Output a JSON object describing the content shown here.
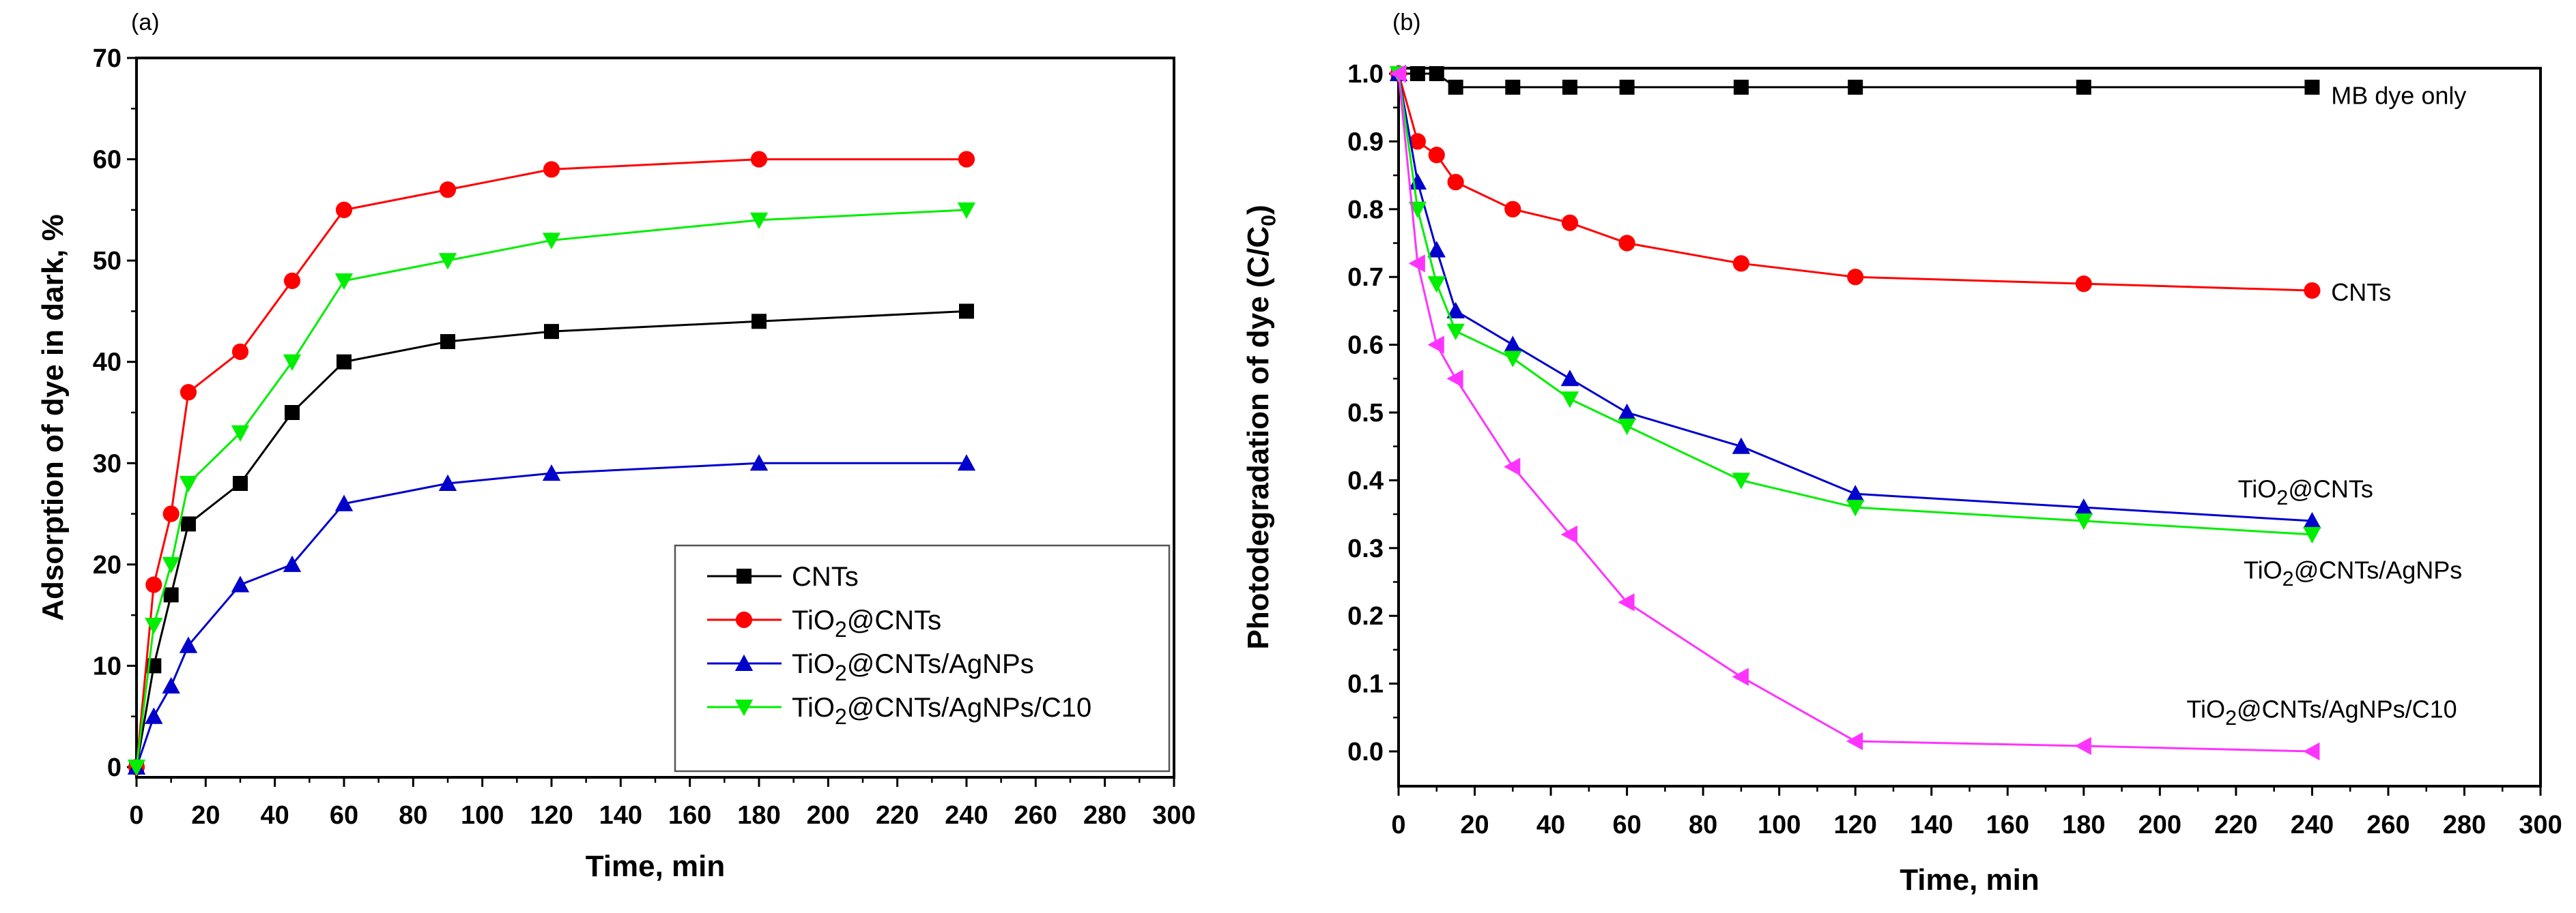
{
  "chart_data": [
    {
      "panel_label": "(a)",
      "type": "line",
      "title": "",
      "xlabel": "Time, min",
      "ylabel": "Adsorption of dye in dark, %",
      "xlim": [
        0,
        300
      ],
      "ylim": [
        0,
        70
      ],
      "xticks": [
        "0",
        "20",
        "40",
        "60",
        "80",
        "100",
        "120",
        "140",
        "160",
        "180",
        "200",
        "220",
        "240",
        "260",
        "280",
        "300"
      ],
      "yticks": [
        "0",
        "10",
        "20",
        "30",
        "40",
        "50",
        "60",
        "70"
      ],
      "legend_position": "bottom-right",
      "x": [
        0,
        5,
        10,
        15,
        30,
        45,
        60,
        90,
        120,
        180,
        240
      ],
      "series": [
        {
          "name": "CNTs",
          "color": "#000000",
          "marker": "square",
          "values": [
            0,
            10,
            17,
            24,
            28,
            35,
            40,
            42,
            43,
            44,
            45
          ]
        },
        {
          "name": "TiO2@CNTs",
          "color": "#ff0000",
          "marker": "circle",
          "values": [
            0,
            18,
            25,
            37,
            41,
            48,
            55,
            57,
            59,
            60,
            60
          ]
        },
        {
          "name": "TiO2@CNTs/AgNPs",
          "color": "#0000cc",
          "marker": "triangle-up",
          "values": [
            0,
            5,
            8,
            12,
            18,
            20,
            26,
            28,
            29,
            30,
            30
          ]
        },
        {
          "name": "TiO2@CNTs/AgNPs/C10",
          "color": "#00ee00",
          "marker": "triangle-down",
          "values": [
            0,
            14,
            20,
            28,
            33,
            40,
            48,
            50,
            52,
            54,
            55
          ]
        }
      ]
    },
    {
      "panel_label": "(b)",
      "type": "line",
      "title": "",
      "xlabel": "Time, min",
      "ylabel": "Photodegradation of dye (C/C0)",
      "xlim": [
        0,
        300
      ],
      "ylim": [
        -0.1,
        1.0
      ],
      "xticks": [
        "0",
        "20",
        "40",
        "60",
        "80",
        "100",
        "120",
        "140",
        "160",
        "180",
        "200",
        "220",
        "240",
        "260",
        "280",
        "300"
      ],
      "yticks": [
        "0.0",
        "0.1",
        "0.2",
        "0.3",
        "0.4",
        "0.5",
        "0.6",
        "0.7",
        "0.8",
        "0.9",
        "1.0"
      ],
      "legend_position": "inline labels at right",
      "x": [
        0,
        5,
        10,
        15,
        30,
        45,
        60,
        90,
        120,
        180,
        240
      ],
      "series": [
        {
          "name": "MB dye only",
          "color": "#000000",
          "marker": "square",
          "values": [
            1.0,
            1.0,
            1.0,
            0.98,
            0.98,
            0.98,
            0.98,
            0.98,
            0.98,
            0.98,
            0.98
          ]
        },
        {
          "name": "CNTs",
          "color": "#ff0000",
          "marker": "circle",
          "values": [
            1.0,
            0.9,
            0.88,
            0.84,
            0.8,
            0.78,
            0.75,
            0.72,
            0.7,
            0.69,
            0.68
          ]
        },
        {
          "name": "TiO2@CNTs",
          "color": "#0000cc",
          "marker": "triangle-up",
          "values": [
            1.0,
            0.84,
            0.74,
            0.65,
            0.6,
            0.55,
            0.5,
            0.45,
            0.38,
            0.36,
            0.34
          ]
        },
        {
          "name": "TiO2@CNTs/AgNPs",
          "color": "#00ee00",
          "marker": "triangle-down",
          "values": [
            1.0,
            0.8,
            0.69,
            0.62,
            0.58,
            0.52,
            0.48,
            0.4,
            0.36,
            0.34,
            0.32
          ]
        },
        {
          "name": "TiO2@CNTs/AgNPs/C10",
          "color": "#ff33ff",
          "marker": "triangle-left",
          "values": [
            1.0,
            0.72,
            0.6,
            0.55,
            0.42,
            0.32,
            0.22,
            0.11,
            0.015,
            0.008,
            0.0
          ]
        }
      ]
    }
  ]
}
